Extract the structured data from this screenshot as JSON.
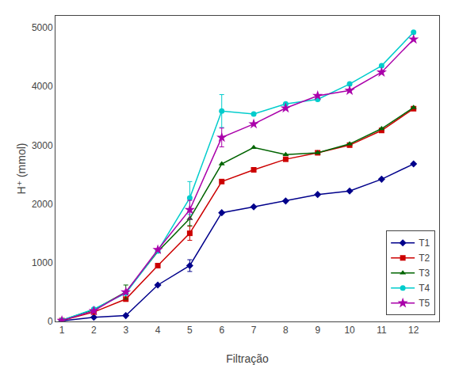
{
  "chart_data": {
    "type": "line",
    "x": [
      1,
      2,
      3,
      4,
      5,
      6,
      7,
      8,
      9,
      10,
      11,
      12
    ],
    "series": [
      {
        "name": "T1",
        "color": "#00008B",
        "marker": "diamond",
        "values": [
          10,
          70,
          100,
          620,
          950,
          1850,
          1950,
          2050,
          2160,
          2220,
          2420,
          2680
        ],
        "errors": [
          null,
          null,
          null,
          null,
          100,
          null,
          null,
          null,
          null,
          null,
          null,
          null
        ]
      },
      {
        "name": "T2",
        "color": "#CC0000",
        "marker": "square",
        "values": [
          15,
          160,
          380,
          950,
          1500,
          2380,
          2580,
          2760,
          2870,
          3000,
          3250,
          3620
        ],
        "errors": [
          null,
          null,
          null,
          null,
          120,
          null,
          null,
          null,
          null,
          null,
          null,
          null
        ]
      },
      {
        "name": "T3",
        "color": "#006400",
        "marker": "triangle-up",
        "values": [
          20,
          200,
          500,
          1190,
          1750,
          2680,
          2960,
          2840,
          2870,
          3020,
          3280,
          3640
        ],
        "errors": [
          null,
          null,
          120,
          null,
          120,
          null,
          null,
          null,
          null,
          null,
          null,
          null
        ]
      },
      {
        "name": "T4",
        "color": "#00CCCC",
        "marker": "circle",
        "values": [
          20,
          210,
          480,
          1200,
          2100,
          3580,
          3530,
          3700,
          3780,
          4040,
          4350,
          4920
        ],
        "errors": [
          null,
          null,
          null,
          null,
          280,
          280,
          null,
          null,
          null,
          null,
          null,
          null
        ]
      },
      {
        "name": "T5",
        "color": "#AA00AA",
        "marker": "star",
        "values": [
          15,
          180,
          500,
          1220,
          1900,
          3130,
          3360,
          3630,
          3840,
          3930,
          4240,
          4800
        ],
        "errors": [
          null,
          null,
          null,
          null,
          160,
          160,
          null,
          null,
          null,
          null,
          null,
          null
        ]
      }
    ],
    "xlabel": "Filtração",
    "ylabel": "H⁺ (mmol)",
    "xlim": [
      0.8,
      12.8
    ],
    "ylim": [
      0,
      5200
    ],
    "xticks": [
      1,
      2,
      3,
      4,
      5,
      6,
      7,
      8,
      9,
      10,
      11,
      12
    ],
    "yticks": [
      0,
      1000,
      2000,
      3000,
      4000,
      5000
    ],
    "grid": false,
    "legend": "lower right"
  }
}
